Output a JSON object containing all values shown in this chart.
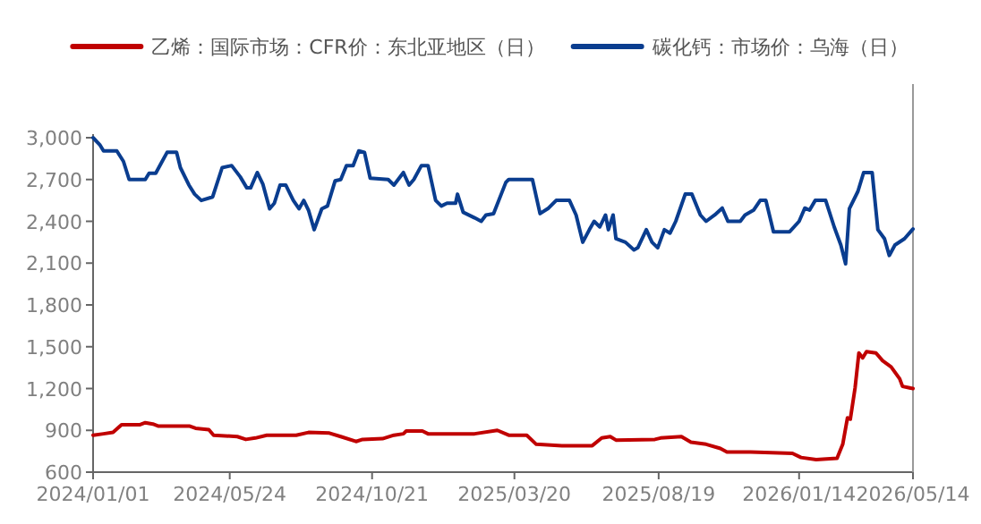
{
  "chart_data": {
    "type": "line",
    "legend": "top",
    "xlim": [
      "2024-01-01",
      "2026-05-14"
    ],
    "xticks": [
      {
        "value": "2024-01-01",
        "label": "2024/01/01"
      },
      {
        "value": "2024-05-24",
        "label": "2024/05/24"
      },
      {
        "value": "2024-10-21",
        "label": "2024/10/21"
      },
      {
        "value": "2025-03-20",
        "label": "2025/03/20"
      },
      {
        "value": "2025-08-19",
        "label": "2025/08/19"
      },
      {
        "value": "2026-01-14",
        "label": "2026/01/14"
      },
      {
        "value": "2026-05-14",
        "label": "2026/05/14"
      }
    ],
    "ylim": [
      600,
      3000
    ],
    "yticks": [
      {
        "value": 600,
        "label": "600"
      },
      {
        "value": 900,
        "label": "900"
      },
      {
        "value": 1200,
        "label": "1,200"
      },
      {
        "value": 1500,
        "label": "1,500"
      },
      {
        "value": 1800,
        "label": "1,800"
      },
      {
        "value": 2100,
        "label": "2,100"
      },
      {
        "value": 2400,
        "label": "2,400"
      },
      {
        "value": 2700,
        "label": "2,700"
      },
      {
        "value": 3000,
        "label": "3,000"
      }
    ],
    "series": [
      {
        "name": "乙烯：国际市场：CFR价：东北亚地区（日）",
        "color": "#c00000",
        "x": [
          "2024-01-01",
          "2024-01-12",
          "2024-01-22",
          "2024-01-31",
          "2024-02-19",
          "2024-02-25",
          "2024-03-04",
          "2024-03-10",
          "2024-04-12",
          "2024-04-18",
          "2024-05-02",
          "2024-05-07",
          "2024-06-01",
          "2024-06-10",
          "2024-06-20",
          "2024-07-02",
          "2024-08-02",
          "2024-08-15",
          "2024-09-06",
          "2024-09-18",
          "2024-10-04",
          "2024-10-11",
          "2024-11-01",
          "2024-11-13",
          "2024-11-23",
          "2024-11-26",
          "2024-12-13",
          "2024-12-19",
          "2025-02-06",
          "2025-03-02",
          "2025-03-14",
          "2025-04-02",
          "2025-04-12",
          "2025-05-09",
          "2025-06-10",
          "2025-06-20",
          "2025-06-29",
          "2025-07-05",
          "2025-08-15",
          "2025-08-21",
          "2025-09-12",
          "2025-09-22",
          "2025-10-08",
          "2025-10-23",
          "2025-10-30",
          "2025-11-24",
          "2026-01-07",
          "2026-01-16",
          "2026-02-01",
          "2026-02-23",
          "2026-03-01",
          "2026-03-06",
          "2026-03-09",
          "2026-03-14",
          "2026-03-18",
          "2026-03-22",
          "2026-03-26",
          "2026-04-05",
          "2026-04-12",
          "2026-04-21",
          "2026-04-30",
          "2026-05-03",
          "2026-05-14"
        ],
        "values": [
          865,
          875,
          885,
          940,
          940,
          955,
          945,
          930,
          930,
          915,
          905,
          865,
          855,
          835,
          845,
          865,
          865,
          885,
          880,
          855,
          820,
          835,
          840,
          865,
          875,
          895,
          895,
          875,
          875,
          900,
          865,
          865,
          800,
          790,
          790,
          845,
          855,
          830,
          835,
          845,
          855,
          815,
          800,
          770,
          745,
          745,
          735,
          705,
          690,
          700,
          800,
          990,
          980,
          1205,
          1455,
          1420,
          1465,
          1455,
          1400,
          1355,
          1270,
          1215,
          1200
        ]
      },
      {
        "name": "碳化钙：市场价：乌海（日）",
        "color": "#0a3d8f",
        "x": [
          "2024-01-01",
          "2024-01-08",
          "2024-01-12",
          "2024-01-26",
          "2024-02-02",
          "2024-02-08",
          "2024-02-25",
          "2024-02-29",
          "2024-03-07",
          "2024-03-13",
          "2024-03-19",
          "2024-03-29",
          "2024-04-02",
          "2024-04-11",
          "2024-04-17",
          "2024-04-24",
          "2024-05-06",
          "2024-05-16",
          "2024-05-26",
          "2024-06-04",
          "2024-06-11",
          "2024-06-15",
          "2024-06-22",
          "2024-06-28",
          "2024-07-05",
          "2024-07-10",
          "2024-07-16",
          "2024-07-22",
          "2024-07-30",
          "2024-08-05",
          "2024-08-10",
          "2024-08-15",
          "2024-08-21",
          "2024-08-29",
          "2024-09-04",
          "2024-09-12",
          "2024-09-18",
          "2024-09-24",
          "2024-10-01",
          "2024-10-07",
          "2024-10-13",
          "2024-10-19",
          "2024-11-07",
          "2024-11-13",
          "2024-11-23",
          "2024-11-29",
          "2024-12-04",
          "2024-12-12",
          "2024-12-19",
          "2024-12-27",
          "2025-01-02",
          "2025-01-08",
          "2025-01-17",
          "2025-01-19",
          "2025-01-25",
          "2025-02-06",
          "2025-02-13",
          "2025-02-18",
          "2025-02-26",
          "2025-03-11",
          "2025-03-14",
          "2025-04-08",
          "2025-04-16",
          "2025-04-25",
          "2025-05-03",
          "2025-05-17",
          "2025-05-24",
          "2025-05-31",
          "2025-06-07",
          "2025-06-12",
          "2025-06-18",
          "2025-06-24",
          "2025-06-27",
          "2025-07-02",
          "2025-07-05",
          "2025-07-15",
          "2025-07-24",
          "2025-07-28",
          "2025-08-06",
          "2025-08-12",
          "2025-08-18",
          "2025-08-25",
          "2025-08-31",
          "2025-09-06",
          "2025-09-16",
          "2025-09-23",
          "2025-10-02",
          "2025-10-08",
          "2025-10-17",
          "2025-10-25",
          "2025-10-31",
          "2025-11-13",
          "2025-11-18",
          "2025-11-27",
          "2025-12-04",
          "2025-12-10",
          "2025-12-18",
          "2026-01-04",
          "2026-01-14",
          "2026-01-20",
          "2026-01-25",
          "2026-01-31",
          "2026-02-11",
          "2026-02-20",
          "2026-02-27",
          "2026-03-04",
          "2026-03-08",
          "2026-03-17",
          "2026-03-23",
          "2026-04-01",
          "2026-04-07",
          "2026-04-14",
          "2026-04-19",
          "2026-04-25",
          "2026-05-05",
          "2026-05-14"
        ],
        "values": [
          3000,
          2950,
          2905,
          2905,
          2830,
          2700,
          2700,
          2745,
          2745,
          2820,
          2895,
          2895,
          2785,
          2660,
          2595,
          2550,
          2575,
          2785,
          2800,
          2720,
          2640,
          2640,
          2750,
          2665,
          2490,
          2530,
          2660,
          2660,
          2550,
          2490,
          2550,
          2480,
          2340,
          2490,
          2510,
          2690,
          2700,
          2800,
          2800,
          2905,
          2895,
          2710,
          2700,
          2660,
          2750,
          2660,
          2700,
          2800,
          2800,
          2550,
          2510,
          2530,
          2530,
          2595,
          2465,
          2425,
          2400,
          2445,
          2455,
          2680,
          2700,
          2700,
          2455,
          2495,
          2550,
          2550,
          2445,
          2250,
          2340,
          2400,
          2360,
          2445,
          2340,
          2445,
          2275,
          2250,
          2195,
          2210,
          2340,
          2250,
          2210,
          2340,
          2315,
          2400,
          2595,
          2595,
          2445,
          2400,
          2445,
          2495,
          2400,
          2400,
          2445,
          2480,
          2550,
          2550,
          2325,
          2325,
          2400,
          2495,
          2480,
          2550,
          2550,
          2360,
          2230,
          2095,
          2490,
          2615,
          2750,
          2750,
          2340,
          2275,
          2155,
          2230,
          2275,
          2345
        ]
      }
    ]
  }
}
